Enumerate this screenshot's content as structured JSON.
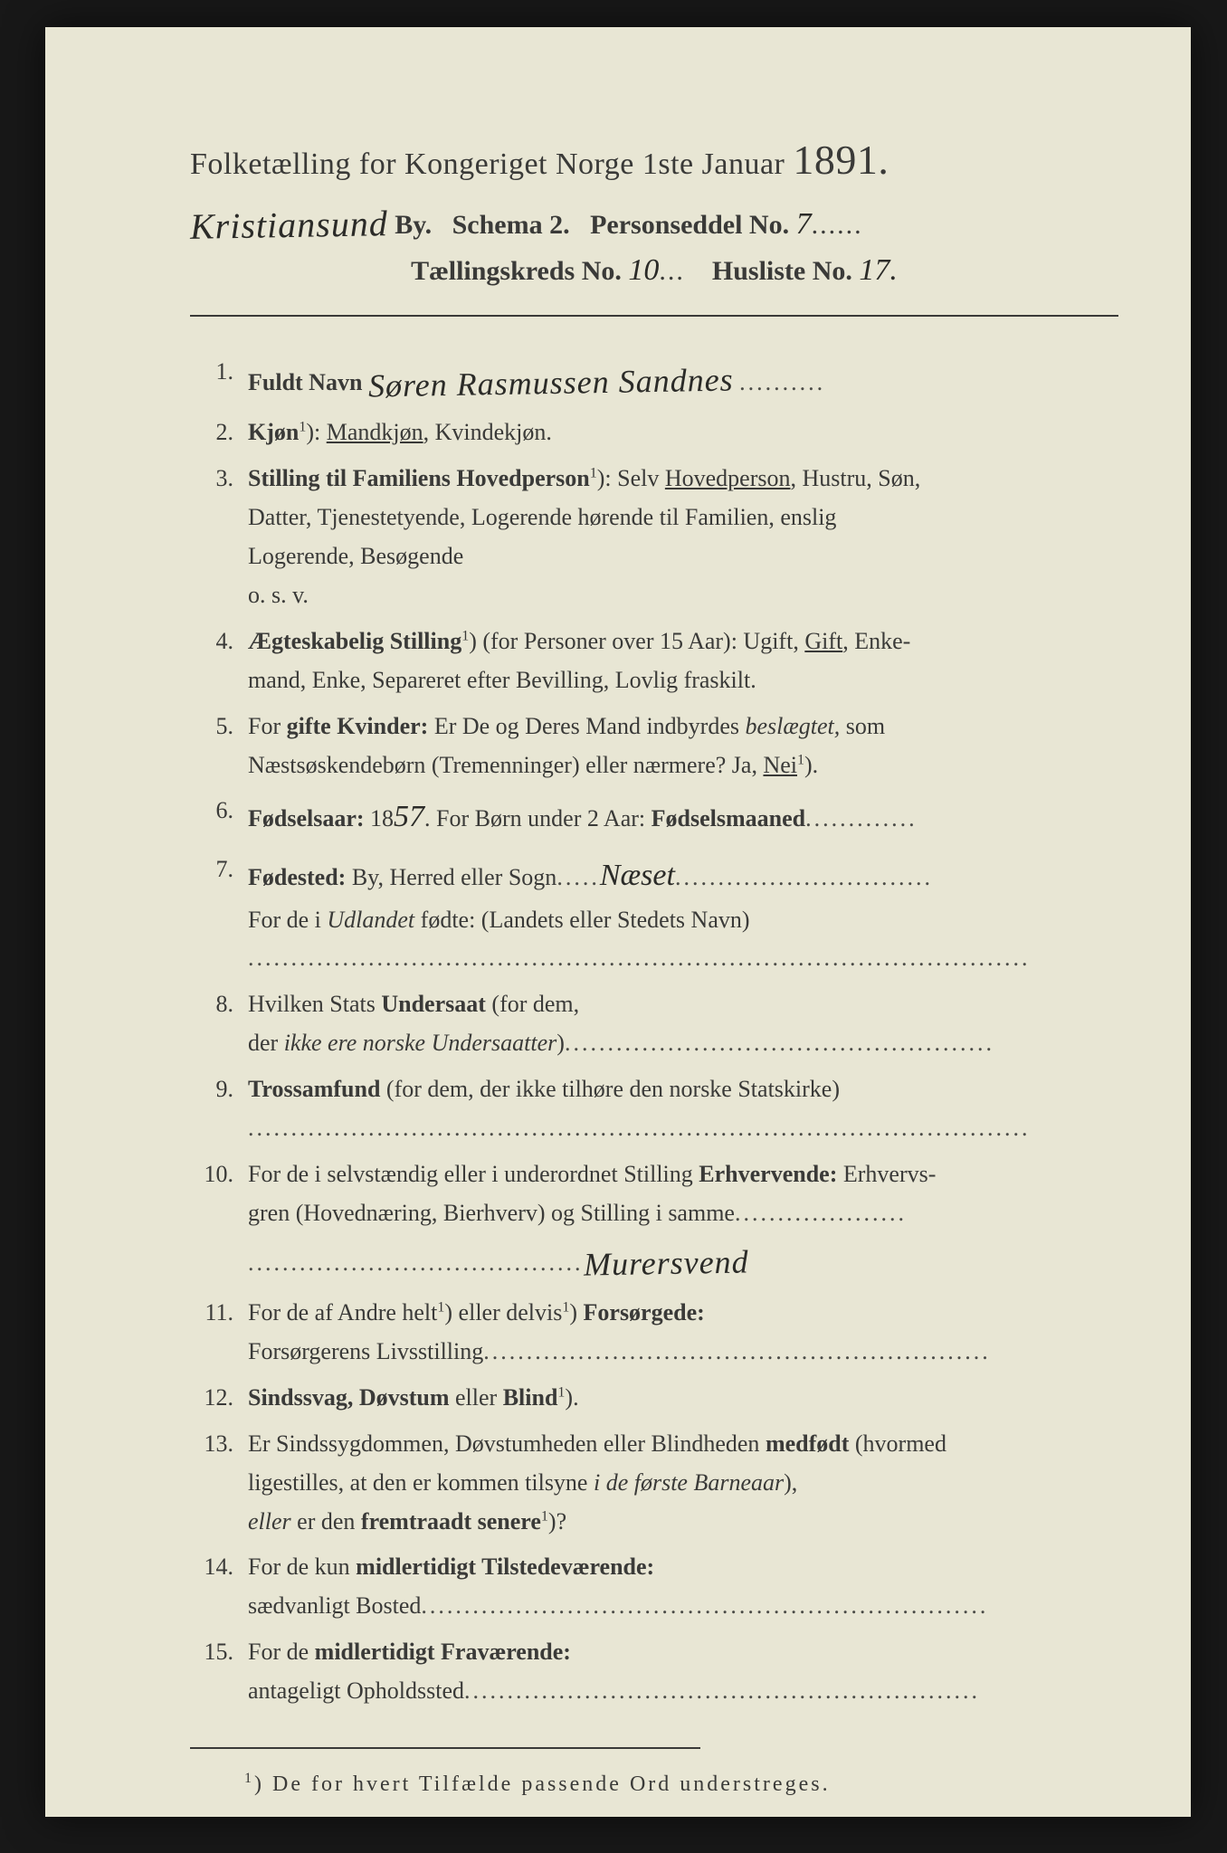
{
  "header": {
    "title_prefix": "Folketælling for Kongeriget Norge 1ste Januar",
    "year": "1891.",
    "city_handwritten": "Kristiansund",
    "by_label": "By.",
    "schema_label": "Schema 2.",
    "personseddel_label": "Personseddel No.",
    "personseddel_no": "7",
    "kreds_label": "Tællingskreds No.",
    "kreds_no": "10",
    "husliste_label": "Husliste No.",
    "husliste_no": "17."
  },
  "items": {
    "i1": {
      "num": "1.",
      "label": "Fuldt Navn",
      "value_hw": "Søren Rasmussen Sandnes"
    },
    "i2": {
      "num": "2.",
      "label": "Kjøn",
      "sup": "1",
      "text": "): Mandkjøn, Kvindekjøn.",
      "underlined": "Mandkjøn"
    },
    "i3": {
      "num": "3.",
      "label": "Stilling til Familiens Hovedperson",
      "sup": "1",
      "line1_a": "): Selv ",
      "underlined": "Hovedperson",
      "line1_b": ", Hustru, Søn,",
      "line2": "Datter, Tjenestetyende, Logerende hørende til Familien, enslig",
      "line3": "Logerende, Besøgende",
      "line4": "o. s. v."
    },
    "i4": {
      "num": "4.",
      "label": "Ægteskabelig Stilling",
      "sup": "1",
      "line1_a": ") (for Personer over 15 Aar): Ugift, ",
      "underlined": "Gift",
      "line1_b": ", Enke-",
      "line2": "mand, Enke, Separeret efter Bevilling, Lovlig fraskilt."
    },
    "i5": {
      "num": "5.",
      "line1_a": "For ",
      "b1": "gifte Kvinder:",
      "line1_b": " Er De og Deres Mand indbyrdes ",
      "i1": "beslægtet,",
      "line1_c": " som",
      "line2_a": "Næstsøskendebørn (Tremenninger) eller nærmere?  Ja, ",
      "underlined": "Nei",
      "sup": "1",
      "line2_b": ")."
    },
    "i6": {
      "num": "6.",
      "label": "Fødselsaar:",
      "prefix": " 18",
      "year_hw": "57",
      "mid": ".   For Børn under 2 Aar: ",
      "b2": "Fødselsmaaned"
    },
    "i7": {
      "num": "7.",
      "label": "Fødested:",
      "text_a": " By, Herred eller Sogn",
      "value_hw": "Næset",
      "line2_a": "For de i ",
      "i1": "Udlandet",
      "line2_b": " fødte: (Landets eller Stedets Navn)"
    },
    "i8": {
      "num": "8.",
      "line1_a": "Hvilken Stats ",
      "b1": "Undersaat",
      "line1_b": " (for dem,",
      "line2_a": "der ",
      "i1": "ikke ere norske Undersaatter",
      "line2_b": ")"
    },
    "i9": {
      "num": "9.",
      "b1": "Trossamfund",
      "text": " (for dem, der ikke tilhøre den norske Statskirke)"
    },
    "i10": {
      "num": "10.",
      "line1_a": "For de i selvstændig eller i underordnet Stilling ",
      "b1": "Erhvervende:",
      "line1_b": " Erhvervs-",
      "line2": "gren (Hovednæring, Bierhverv) og Stilling i samme",
      "value_hw": "Murersvend"
    },
    "i11": {
      "num": "11.",
      "line1_a": "For de af Andre helt",
      "sup1": "1",
      "line1_b": ") eller delvis",
      "sup2": "1",
      "line1_c": ") ",
      "b1": "Forsørgede:",
      "line2": "Forsørgerens Livsstilling"
    },
    "i12": {
      "num": "12.",
      "b1": "Sindssvag, Døvstum",
      "text_a": " eller ",
      "b2": "Blind",
      "sup": "1",
      "text_b": ")."
    },
    "i13": {
      "num": "13.",
      "line1_a": "Er Sindssygdommen, Døvstumheden eller Blindheden ",
      "b1": "medfødt",
      "line1_b": " (hvormed",
      "line2_a": "ligestilles, at den er kommen tilsyne ",
      "i1": "i de første Barneaar",
      "line2_b": "),",
      "line3_a": "eller",
      "line3_b": " er den ",
      "b2": "fremtraadt senere",
      "sup": "1",
      "line3_c": ")?"
    },
    "i14": {
      "num": "14.",
      "line1_a": "For de kun ",
      "b1": "midlertidigt Tilstedeværende:",
      "line2": "sædvanligt Bosted"
    },
    "i15": {
      "num": "15.",
      "line1_a": "For de ",
      "b1": "midlertidigt Fraværende:",
      "line2": "antageligt Opholdssted"
    }
  },
  "footnote": {
    "sup": "1",
    "text": ") De for hvert Tilfælde passende Ord understreges."
  },
  "colors": {
    "paper": "#e8e6d4",
    "ink": "#3a3a38",
    "bg": "#181818"
  }
}
